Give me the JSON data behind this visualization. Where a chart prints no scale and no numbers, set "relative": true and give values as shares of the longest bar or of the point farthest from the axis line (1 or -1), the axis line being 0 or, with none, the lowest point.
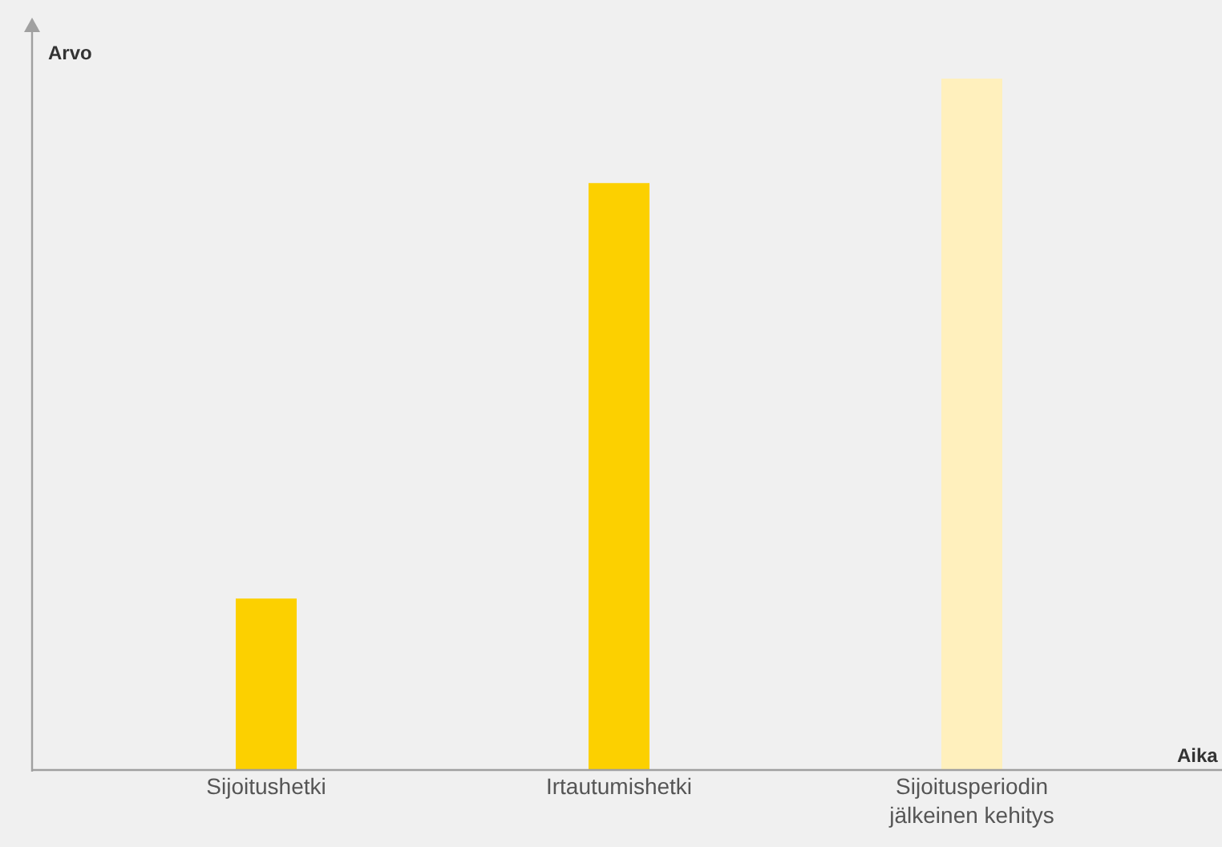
{
  "chart_data": {
    "type": "bar",
    "relative": true,
    "xlabel": "Aika",
    "ylabel": "Arvo",
    "categories": [
      "Sijoitushetki",
      "Irtautumishetki",
      "Sijoitusperiodin jälkeinen kehitys"
    ],
    "values": [
      0.248,
      0.849,
      1
    ],
    "colors": [
      "#fcd000",
      "#fcd000",
      "#fff0bd"
    ],
    "grid": false
  }
}
